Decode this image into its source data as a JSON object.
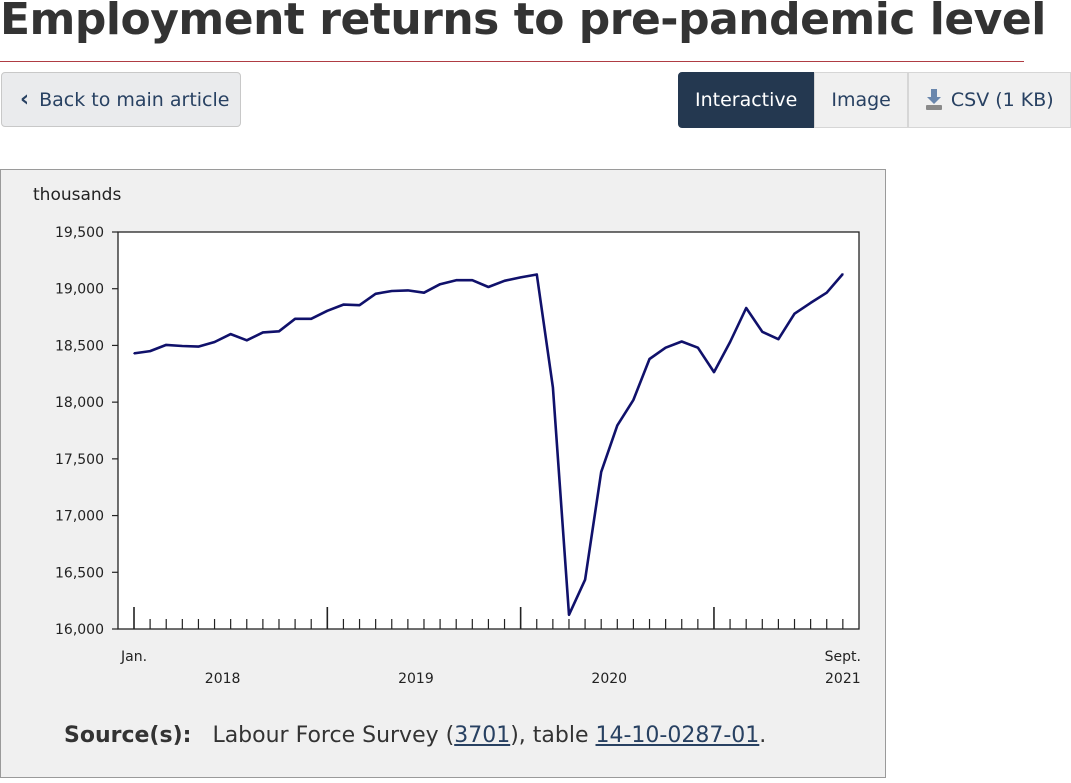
{
  "page": {
    "title": "Employment returns to pre-pandemic level"
  },
  "nav": {
    "back_label": "Back to main article",
    "back_icon": "chevron-left-icon"
  },
  "view_tabs": [
    {
      "label": "Interactive",
      "active": true
    },
    {
      "label": "Image",
      "active": false
    },
    {
      "label": "CSV (1 KB)",
      "active": false,
      "icon": "download-icon"
    }
  ],
  "source": {
    "label": "Source(s):",
    "text_before": "Labour Force Survey (",
    "survey_code": "3701",
    "text_middle": "), table ",
    "table_code": "14-10-0287-01",
    "text_after": "."
  },
  "colors": {
    "line": "#10116b",
    "panel_bg": "#f0f0f0",
    "plot_bg": "#ffffff",
    "tab_active_bg": "#243850",
    "link": "#284162",
    "title_rule": "#af3c43"
  },
  "chart_data": {
    "type": "line",
    "unit_label": "thousands",
    "ylim": [
      16000,
      19500
    ],
    "yticks": [
      16000,
      16500,
      17000,
      17500,
      18000,
      18500,
      19000,
      19500
    ],
    "ytick_labels": [
      "16,000",
      "16,500",
      "17,000",
      "17,500",
      "18,000",
      "18,500",
      "19,000",
      "19,500"
    ],
    "x_start_label": "Jan.",
    "x_end_label": "Sept.",
    "year_labels": [
      "2018",
      "2019",
      "2020",
      "2021"
    ],
    "legend": "none",
    "grid": false,
    "x": [
      "2018-01",
      "2018-02",
      "2018-03",
      "2018-04",
      "2018-05",
      "2018-06",
      "2018-07",
      "2018-08",
      "2018-09",
      "2018-10",
      "2018-11",
      "2018-12",
      "2019-01",
      "2019-02",
      "2019-03",
      "2019-04",
      "2019-05",
      "2019-06",
      "2019-07",
      "2019-08",
      "2019-09",
      "2019-10",
      "2019-11",
      "2019-12",
      "2020-01",
      "2020-02",
      "2020-03",
      "2020-04",
      "2020-05",
      "2020-06",
      "2020-07",
      "2020-08",
      "2020-09",
      "2020-10",
      "2020-11",
      "2020-12",
      "2021-01",
      "2021-02",
      "2021-03",
      "2021-04",
      "2021-05",
      "2021-06",
      "2021-07",
      "2021-08",
      "2021-09"
    ],
    "series": [
      {
        "values": [
          18430,
          18450,
          18505,
          18495,
          18490,
          18530,
          18600,
          18545,
          18615,
          18625,
          18735,
          18735,
          18805,
          18860,
          18855,
          18955,
          18980,
          18985,
          18965,
          19040,
          19075,
          19075,
          19015,
          19070,
          19100,
          19125,
          18130,
          16125,
          16435,
          17385,
          17795,
          18020,
          18380,
          18480,
          18535,
          18480,
          18265,
          18530,
          18830,
          18620,
          18555,
          18780,
          18875,
          18965,
          19130
        ]
      }
    ]
  }
}
